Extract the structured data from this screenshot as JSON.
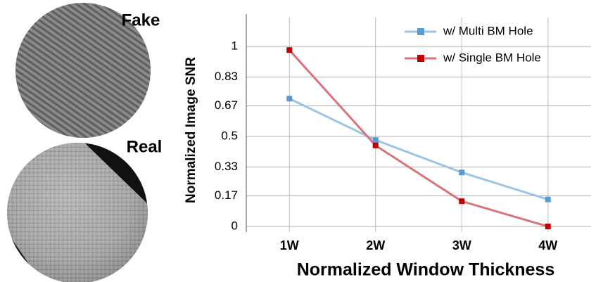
{
  "panels": [
    {
      "label": "Fake"
    },
    {
      "label": "Real"
    }
  ],
  "chart_data": {
    "type": "line",
    "xlabel": "Normalized Window Thickness",
    "ylabel": "Normalized Image SNR",
    "categories": [
      "1W",
      "2W",
      "3W",
      "4W"
    ],
    "series": [
      {
        "name": "w/ Multi BM Hole",
        "color": "#9dc3e6",
        "marker_color": "#5b9bd5",
        "values": [
          0.71,
          0.48,
          0.3,
          0.15
        ]
      },
      {
        "name": "w/ Single BM Hole",
        "color": "#d9737a",
        "marker_color": "#c00000",
        "values": [
          0.98,
          0.45,
          0.14,
          0.0
        ]
      }
    ],
    "ylim": [
      0,
      1.18
    ],
    "yticks": [
      0,
      0.17,
      0.33,
      0.5,
      0.67,
      0.83,
      1
    ],
    "grid": true,
    "legend": "upper right"
  }
}
